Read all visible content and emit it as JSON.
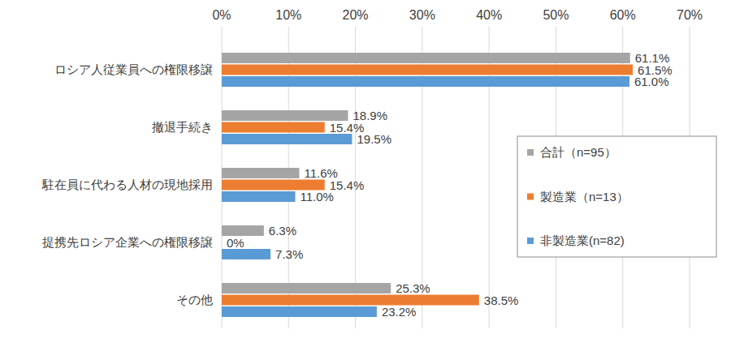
{
  "chart_data": {
    "type": "bar",
    "orientation": "horizontal",
    "categories": [
      "ロシア人従業員への権限移譲",
      "撤退手続き",
      "駐在員に代わる人材の現地採用",
      "提携先ロシア企業への権限移譲",
      "その他"
    ],
    "series": [
      {
        "name": "合計（n=95）",
        "color": "#a5a5a5",
        "values": [
          61.1,
          18.9,
          11.6,
          6.3,
          25.3
        ],
        "value_labels": [
          "61.1%",
          "18.9%",
          "11.6%",
          "6.3%",
          "25.3%"
        ]
      },
      {
        "name": "製造業（n=13）",
        "color": "#ed7d31",
        "values": [
          61.5,
          15.4,
          15.4,
          0,
          38.5
        ],
        "value_labels": [
          "61.5%",
          "15.4%",
          "15.4%",
          "0%",
          "38.5%"
        ]
      },
      {
        "name": "非製造業(n=82)",
        "color": "#5b9bd5",
        "values": [
          61.0,
          19.5,
          11.0,
          7.3,
          23.2
        ],
        "value_labels": [
          "61.0%",
          "19.5%",
          "11.0%",
          "7.3%",
          "23.2%"
        ]
      }
    ],
    "xlim": [
      0,
      70
    ],
    "xticks": [
      {
        "value": 0,
        "label": "0%"
      },
      {
        "value": 10,
        "label": "10%"
      },
      {
        "value": 20,
        "label": "20%"
      },
      {
        "value": 30,
        "label": "30%"
      },
      {
        "value": 40,
        "label": "40%"
      },
      {
        "value": 50,
        "label": "50%"
      },
      {
        "value": 60,
        "label": "60%"
      },
      {
        "value": 70,
        "label": "70%"
      }
    ],
    "grid": true,
    "data_labels": true,
    "legend": "right"
  }
}
